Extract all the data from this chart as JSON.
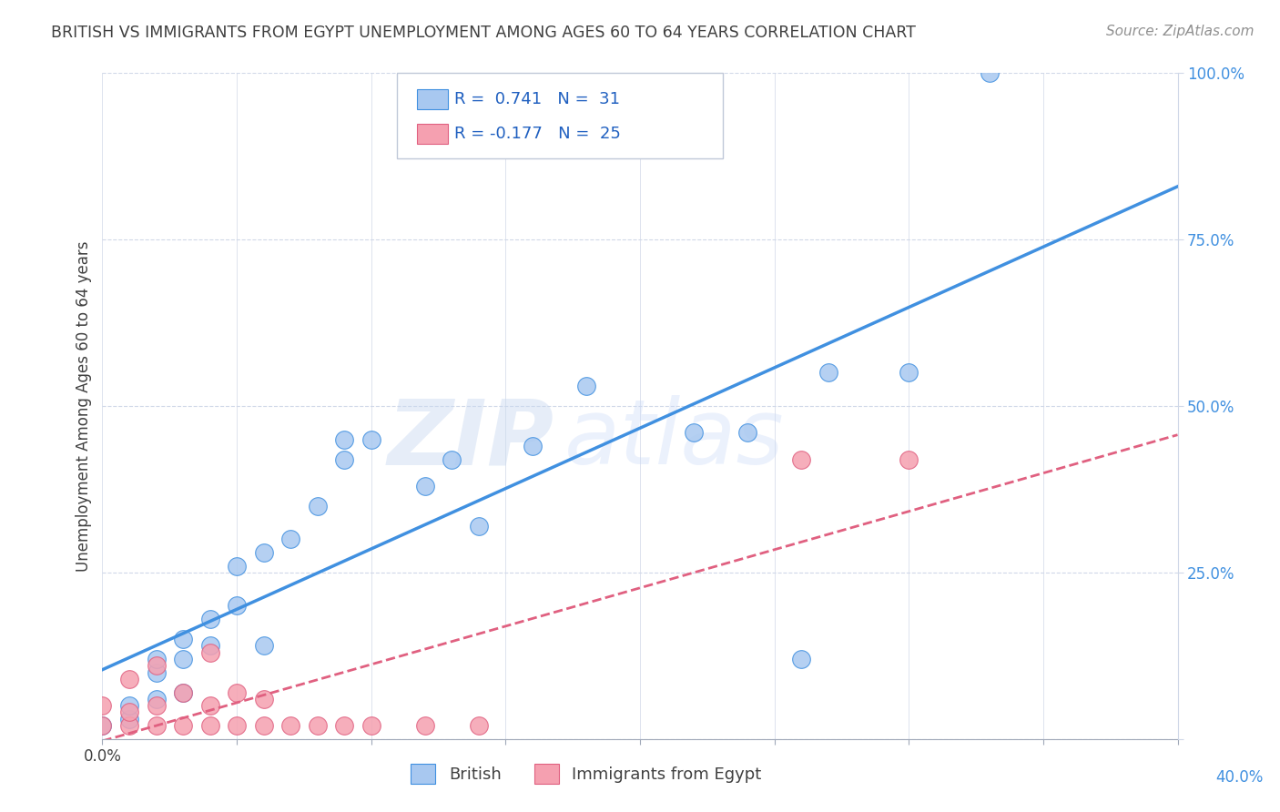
{
  "title": "BRITISH VS IMMIGRANTS FROM EGYPT UNEMPLOYMENT AMONG AGES 60 TO 64 YEARS CORRELATION CHART",
  "source": "Source: ZipAtlas.com",
  "ylabel": "Unemployment Among Ages 60 to 64 years",
  "xlim": [
    0,
    0.4
  ],
  "ylim": [
    0,
    1.0
  ],
  "xticks": [
    0.0,
    0.05,
    0.1,
    0.15,
    0.2,
    0.25,
    0.3,
    0.35,
    0.4
  ],
  "yticks": [
    0.0,
    0.25,
    0.5,
    0.75,
    1.0
  ],
  "watermark_zip": "ZIP",
  "watermark_atlas": "atlas",
  "british_R": 0.741,
  "british_N": 31,
  "egypt_R": -0.177,
  "egypt_N": 25,
  "british_color": "#a8c8f0",
  "egypt_color": "#f5a0b0",
  "british_line_color": "#4090e0",
  "egypt_line_color": "#e06080",
  "british_scatter_x": [
    0.0,
    0.01,
    0.01,
    0.02,
    0.02,
    0.02,
    0.03,
    0.03,
    0.03,
    0.04,
    0.04,
    0.05,
    0.05,
    0.06,
    0.06,
    0.07,
    0.08,
    0.09,
    0.09,
    0.1,
    0.12,
    0.13,
    0.14,
    0.16,
    0.18,
    0.22,
    0.24,
    0.27,
    0.3,
    0.33,
    0.26
  ],
  "british_scatter_y": [
    0.02,
    0.03,
    0.05,
    0.06,
    0.1,
    0.12,
    0.07,
    0.12,
    0.15,
    0.14,
    0.18,
    0.2,
    0.26,
    0.14,
    0.28,
    0.3,
    0.35,
    0.42,
    0.45,
    0.45,
    0.38,
    0.42,
    0.32,
    0.44,
    0.53,
    0.46,
    0.46,
    0.55,
    0.55,
    1.0,
    0.12
  ],
  "egypt_scatter_x": [
    0.0,
    0.0,
    0.01,
    0.01,
    0.01,
    0.02,
    0.02,
    0.02,
    0.03,
    0.03,
    0.04,
    0.04,
    0.04,
    0.05,
    0.05,
    0.06,
    0.06,
    0.07,
    0.08,
    0.09,
    0.1,
    0.12,
    0.14,
    0.26,
    0.3
  ],
  "egypt_scatter_y": [
    0.02,
    0.05,
    0.02,
    0.04,
    0.09,
    0.02,
    0.05,
    0.11,
    0.02,
    0.07,
    0.02,
    0.05,
    0.13,
    0.02,
    0.07,
    0.02,
    0.06,
    0.02,
    0.02,
    0.02,
    0.02,
    0.02,
    0.02,
    0.42,
    0.42
  ],
  "grid_color": "#d0d8e8",
  "background_color": "#ffffff",
  "title_color": "#404040",
  "axis_label_color": "#404040",
  "tick_label_color_right": "#4090e0"
}
